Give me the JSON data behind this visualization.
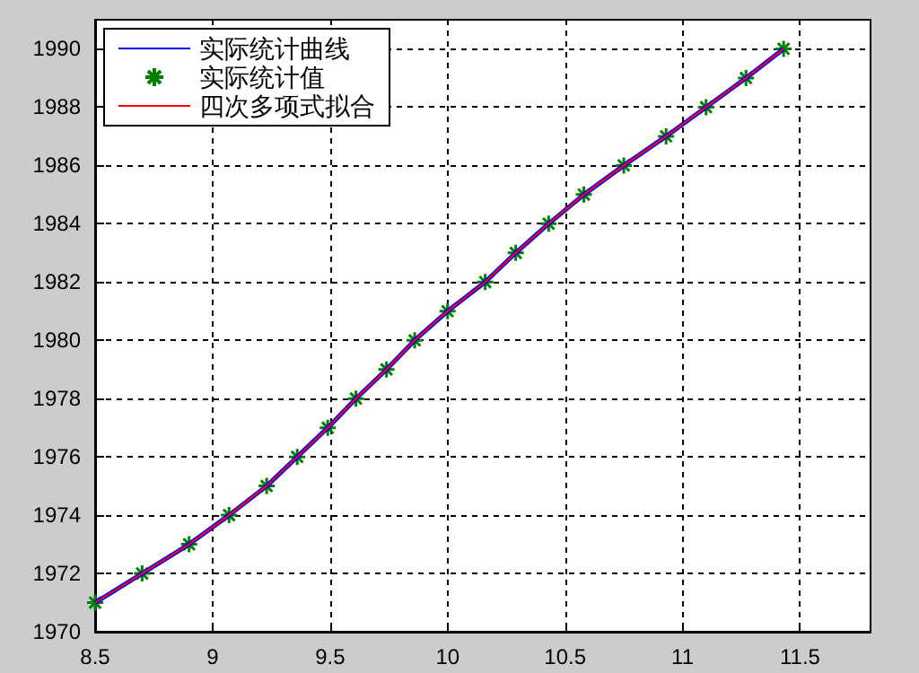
{
  "chart_data": {
    "type": "line",
    "xlim": [
      8.5,
      11.8
    ],
    "xticks": [
      8.5,
      9,
      9.5,
      10,
      10.5,
      11,
      11.5
    ],
    "ylim": [
      1970,
      1991
    ],
    "yticks": [
      1970,
      1972,
      1974,
      1976,
      1978,
      1980,
      1982,
      1984,
      1986,
      1988,
      1990
    ],
    "grid": true,
    "legend": "top left",
    "line_style": "solid",
    "series": [
      {
        "name": "实际统计曲线",
        "color": "#0000ff",
        "marker": "none",
        "x": [
          8.5,
          8.7,
          8.9,
          9.07,
          9.23,
          9.36,
          9.49,
          9.61,
          9.74,
          9.86,
          10.0,
          10.16,
          10.29,
          10.43,
          10.58,
          10.75,
          10.93,
          11.1,
          11.27,
          11.43
        ],
        "values": [
          1971,
          1972,
          1973,
          1974,
          1975,
          1976,
          1977,
          1978,
          1979,
          1980,
          1981,
          1982,
          1983,
          1984,
          1985,
          1986,
          1987,
          1988,
          1989,
          1990
        ]
      },
      {
        "name": "实际统计值",
        "type": "scatter",
        "color": "#008000",
        "marker": "cross",
        "x": [
          8.5,
          8.7,
          8.9,
          9.07,
          9.23,
          9.36,
          9.49,
          9.61,
          9.74,
          9.86,
          10.0,
          10.16,
          10.29,
          10.43,
          10.58,
          10.75,
          10.93,
          11.1,
          11.27,
          11.43
        ],
        "values": [
          1971,
          1972,
          1973,
          1974,
          1975,
          1976,
          1977,
          1978,
          1979,
          1980,
          1981,
          1982,
          1983,
          1984,
          1985,
          1986,
          1987,
          1988,
          1989,
          1990
        ]
      },
      {
        "name": "四次多项式拟合",
        "color": "#ff0000",
        "marker": "none",
        "x": [
          8.5,
          8.7,
          8.9,
          9.07,
          9.23,
          9.36,
          9.49,
          9.61,
          9.74,
          9.86,
          10.0,
          10.16,
          10.29,
          10.43,
          10.58,
          10.75,
          10.93,
          11.1,
          11.27,
          11.43
        ],
        "values": [
          1971,
          1972,
          1973,
          1974,
          1975,
          1976,
          1977,
          1978,
          1979,
          1980,
          1981,
          1982,
          1983,
          1984,
          1985,
          1986,
          1987,
          1988,
          1989,
          1990
        ]
      }
    ]
  }
}
